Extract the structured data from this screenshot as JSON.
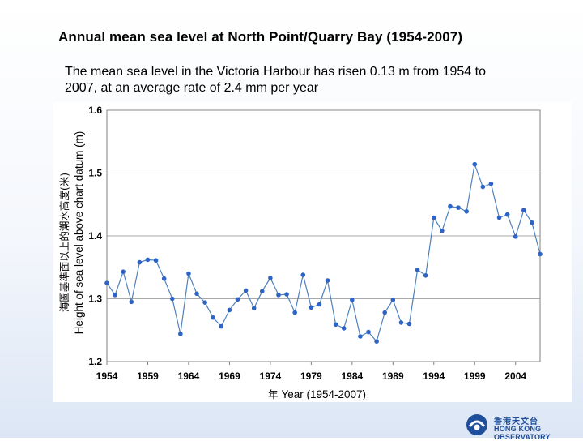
{
  "title": "Annual mean sea level at North Point/Quarry Bay (1954-2007)",
  "subtitle_line1": "The mean sea level in the Victoria Harbour has risen 0.13 m from 1954 to",
  "subtitle_line2": "2007, at an average rate of 2.4 mm per year",
  "logo": {
    "cn": "香港天文台",
    "en": "HONG KONG OBSERVATORY",
    "color": "#1f4e9a"
  },
  "chart_data": {
    "type": "line",
    "title": "",
    "xlabel": "Year (1954-2007)",
    "xlabel_cn": "年",
    "ylabel": "Height of sea level above chart datum (m)",
    "ylabel_cn": "海圖基準面以上的潮水高度(米)",
    "xlim": [
      1954,
      2007
    ],
    "ylim": [
      1.2,
      1.6
    ],
    "x_ticks": [
      1954,
      1959,
      1964,
      1969,
      1974,
      1979,
      1984,
      1989,
      1994,
      1999,
      2004
    ],
    "y_ticks": [
      1.2,
      1.3,
      1.4,
      1.5,
      1.6
    ],
    "y_tick_labels": [
      "1.2",
      "1.3",
      "1.4",
      "1.5",
      "1.6"
    ],
    "grid": "horizontal",
    "line_color": "#4f81bd",
    "marker_color": "#2e64c4",
    "series": [
      {
        "name": "",
        "x": [
          1954,
          1955,
          1956,
          1957,
          1958,
          1959,
          1960,
          1961,
          1962,
          1963,
          1964,
          1965,
          1966,
          1967,
          1968,
          1969,
          1970,
          1971,
          1972,
          1973,
          1974,
          1975,
          1976,
          1977,
          1978,
          1979,
          1980,
          1981,
          1982,
          1983,
          1984,
          1985,
          1986,
          1987,
          1988,
          1989,
          1990,
          1991,
          1992,
          1993,
          1994,
          1995,
          1996,
          1997,
          1998,
          1999,
          2000,
          2001,
          2002,
          2003,
          2004,
          2005,
          2006,
          2007
        ],
        "values": [
          1.325,
          1.306,
          1.343,
          1.295,
          1.358,
          1.362,
          1.361,
          1.332,
          1.3,
          1.244,
          1.34,
          1.308,
          1.294,
          1.27,
          1.256,
          1.282,
          1.299,
          1.313,
          1.285,
          1.312,
          1.333,
          1.306,
          1.307,
          1.278,
          1.338,
          1.286,
          1.291,
          1.329,
          1.259,
          1.253,
          1.298,
          1.24,
          1.247,
          1.232,
          1.278,
          1.298,
          1.262,
          1.26,
          1.346,
          1.337,
          1.429,
          1.408,
          1.447,
          1.445,
          1.439,
          1.514,
          1.478,
          1.483,
          1.429,
          1.434,
          1.399,
          1.441,
          1.421,
          1.371
        ]
      }
    ]
  }
}
